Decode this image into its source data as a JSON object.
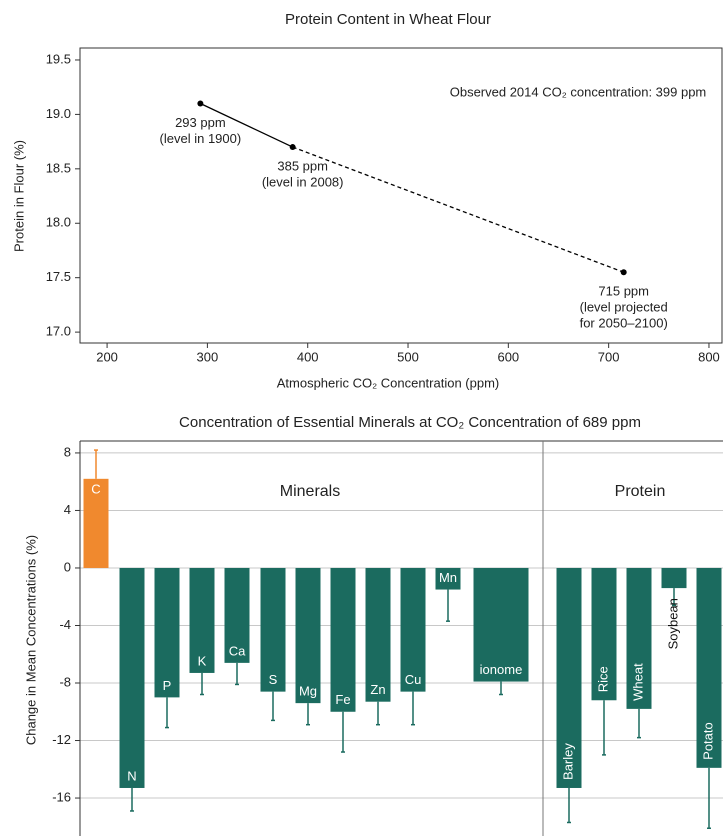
{
  "chart_data": [
    {
      "type": "line",
      "title": "Protein Content in Wheat Flour",
      "x_label": "Atmospheric CO₂ Concentration (ppm)",
      "y_label": "Protein in Flour (%)",
      "x": [
        293,
        385,
        715
      ],
      "values": [
        19.1,
        18.7,
        17.55
      ],
      "line_styles": [
        "solid",
        "dashed"
      ],
      "color": "#000000",
      "point_labels": [
        [
          "293 ppm",
          "(level in 1900)"
        ],
        [
          "385 ppm",
          "(level in 2008)"
        ],
        [
          "715 ppm",
          "(level projected",
          "for 2050–2100)"
        ]
      ],
      "annotation": "Observed 2014 CO₂ concentration: 399 ppm",
      "xlim": [
        173,
        813
      ],
      "xticks": [
        200,
        300,
        400,
        500,
        600,
        700,
        800
      ],
      "ylim": [
        16.9,
        19.61
      ],
      "yticks": [
        {
          "value": 17,
          "label": "17.0"
        },
        17.5,
        {
          "value": 18,
          "label": "18.0"
        },
        18.5,
        {
          "value": 19,
          "label": "19.0"
        },
        19.5
      ],
      "grid": false
    },
    {
      "type": "bar",
      "title": "Concentration of Essential Minerals at CO₂ Concentration of 689 ppm",
      "y_label": "Change in Mean Concentrations (%)",
      "groups": [
        "Minerals",
        "Protein"
      ],
      "categories": [
        "C",
        "N",
        "P",
        "K",
        "Ca",
        "S",
        "Mg",
        "Fe",
        "Zn",
        "Cu",
        "Mn",
        "ionome",
        "Barley",
        "Rice",
        "Wheat",
        "Soybean",
        "Potato"
      ],
      "values": [
        6.2,
        -15.3,
        -9.0,
        -7.3,
        -6.6,
        -8.6,
        -9.4,
        -10.0,
        -9.3,
        -8.6,
        -1.5,
        -7.9,
        -15.3,
        -9.2,
        -9.8,
        -1.4,
        -13.9
      ],
      "errors": [
        2.0,
        1.6,
        2.1,
        1.5,
        1.5,
        2.0,
        1.5,
        2.8,
        1.6,
        2.3,
        2.2,
        0.9,
        2.4,
        3.8,
        2.0,
        1.2,
        4.2
      ],
      "colors": [
        "#f0892e",
        "#1b6b5f",
        "#1b6b5f",
        "#1b6b5f",
        "#1b6b5f",
        "#1b6b5f",
        "#1b6b5f",
        "#1b6b5f",
        "#1b6b5f",
        "#1b6b5f",
        "#1b6b5f",
        "#1b6b5f",
        "#1b6b5f",
        "#1b6b5f",
        "#1b6b5f",
        "#1b6b5f",
        "#1b6b5f"
      ],
      "ylim": [
        -18.64,
        8.83
      ],
      "yticks": [
        8,
        4,
        0,
        -4,
        -8,
        -12,
        -16
      ],
      "grid": true
    }
  ]
}
